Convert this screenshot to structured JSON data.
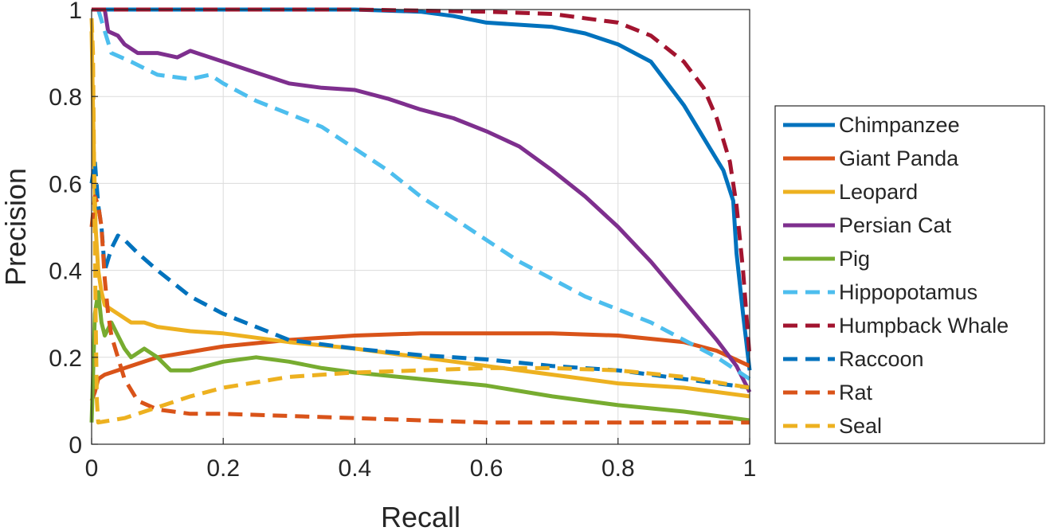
{
  "chart_data": {
    "type": "line",
    "title": "",
    "xlabel": "Recall",
    "ylabel": "Precision",
    "xlim": [
      0,
      1
    ],
    "ylim": [
      0,
      1
    ],
    "xticks": [
      0,
      0.2,
      0.4,
      0.6,
      0.8,
      1
    ],
    "xtick_labels": [
      "0",
      "0.2",
      "0.4",
      "0.6",
      "0.8",
      "1"
    ],
    "yticks": [
      0,
      0.2,
      0.4,
      0.6,
      0.8,
      1
    ],
    "ytick_labels": [
      "0",
      "0.2",
      "0.4",
      "0.6",
      "0.8",
      "1"
    ],
    "grid": true,
    "legend_position": "outside-right",
    "series": [
      {
        "name": "Chimpanzee",
        "color": "#0072BD",
        "style": "solid",
        "points": [
          [
            0,
            1
          ],
          [
            0.2,
            1
          ],
          [
            0.4,
            1
          ],
          [
            0.5,
            0.995
          ],
          [
            0.55,
            0.985
          ],
          [
            0.6,
            0.97
          ],
          [
            0.7,
            0.96
          ],
          [
            0.75,
            0.945
          ],
          [
            0.8,
            0.92
          ],
          [
            0.85,
            0.88
          ],
          [
            0.9,
            0.78
          ],
          [
            0.94,
            0.68
          ],
          [
            0.96,
            0.63
          ],
          [
            0.975,
            0.56
          ],
          [
            0.98,
            0.44
          ],
          [
            0.99,
            0.3
          ],
          [
            1,
            0.17
          ]
        ]
      },
      {
        "name": "Giant Panda",
        "color": "#D95319",
        "style": "solid",
        "points": [
          [
            0,
            0.1
          ],
          [
            0.005,
            0.12
          ],
          [
            0.01,
            0.15
          ],
          [
            0.02,
            0.16
          ],
          [
            0.05,
            0.175
          ],
          [
            0.1,
            0.2
          ],
          [
            0.2,
            0.225
          ],
          [
            0.3,
            0.24
          ],
          [
            0.4,
            0.25
          ],
          [
            0.5,
            0.255
          ],
          [
            0.6,
            0.255
          ],
          [
            0.7,
            0.255
          ],
          [
            0.8,
            0.25
          ],
          [
            0.9,
            0.235
          ],
          [
            0.95,
            0.215
          ],
          [
            1,
            0.18
          ]
        ]
      },
      {
        "name": "Leopard",
        "color": "#EDB120",
        "style": "solid",
        "points": [
          [
            0,
            0.95
          ],
          [
            0.003,
            0.7
          ],
          [
            0.006,
            0.5
          ],
          [
            0.01,
            0.4
          ],
          [
            0.015,
            0.35
          ],
          [
            0.02,
            0.32
          ],
          [
            0.04,
            0.3
          ],
          [
            0.06,
            0.28
          ],
          [
            0.08,
            0.28
          ],
          [
            0.1,
            0.27
          ],
          [
            0.15,
            0.26
          ],
          [
            0.2,
            0.255
          ],
          [
            0.3,
            0.235
          ],
          [
            0.4,
            0.22
          ],
          [
            0.5,
            0.2
          ],
          [
            0.6,
            0.18
          ],
          [
            0.7,
            0.16
          ],
          [
            0.8,
            0.14
          ],
          [
            0.9,
            0.13
          ],
          [
            1,
            0.11
          ]
        ]
      },
      {
        "name": "Persian Cat",
        "color": "#7E2F8E",
        "style": "solid",
        "points": [
          [
            0.02,
            1
          ],
          [
            0.025,
            0.95
          ],
          [
            0.04,
            0.94
          ],
          [
            0.05,
            0.92
          ],
          [
            0.07,
            0.9
          ],
          [
            0.1,
            0.9
          ],
          [
            0.13,
            0.89
          ],
          [
            0.15,
            0.905
          ],
          [
            0.2,
            0.88
          ],
          [
            0.25,
            0.855
          ],
          [
            0.3,
            0.83
          ],
          [
            0.35,
            0.82
          ],
          [
            0.4,
            0.815
          ],
          [
            0.45,
            0.795
          ],
          [
            0.5,
            0.77
          ],
          [
            0.55,
            0.75
          ],
          [
            0.6,
            0.72
          ],
          [
            0.65,
            0.685
          ],
          [
            0.7,
            0.63
          ],
          [
            0.75,
            0.57
          ],
          [
            0.8,
            0.5
          ],
          [
            0.85,
            0.42
          ],
          [
            0.9,
            0.33
          ],
          [
            0.95,
            0.24
          ],
          [
            0.98,
            0.18
          ],
          [
            1,
            0.12
          ]
        ]
      },
      {
        "name": "Pig",
        "color": "#77AC30",
        "style": "solid",
        "points": [
          [
            0,
            0.05
          ],
          [
            0.005,
            0.3
          ],
          [
            0.01,
            0.35
          ],
          [
            0.015,
            0.28
          ],
          [
            0.02,
            0.25
          ],
          [
            0.03,
            0.28
          ],
          [
            0.04,
            0.25
          ],
          [
            0.05,
            0.22
          ],
          [
            0.06,
            0.2
          ],
          [
            0.08,
            0.22
          ],
          [
            0.1,
            0.2
          ],
          [
            0.12,
            0.17
          ],
          [
            0.15,
            0.17
          ],
          [
            0.2,
            0.19
          ],
          [
            0.25,
            0.2
          ],
          [
            0.3,
            0.19
          ],
          [
            0.35,
            0.175
          ],
          [
            0.4,
            0.165
          ],
          [
            0.5,
            0.15
          ],
          [
            0.6,
            0.135
          ],
          [
            0.7,
            0.11
          ],
          [
            0.8,
            0.09
          ],
          [
            0.9,
            0.075
          ],
          [
            1,
            0.055
          ]
        ]
      },
      {
        "name": "Hippopotamus",
        "color": "#4DBEEE",
        "style": "dashed",
        "points": [
          [
            0.01,
            1
          ],
          [
            0.03,
            0.9
          ],
          [
            0.06,
            0.88
          ],
          [
            0.1,
            0.85
          ],
          [
            0.15,
            0.84
          ],
          [
            0.18,
            0.85
          ],
          [
            0.2,
            0.83
          ],
          [
            0.25,
            0.79
          ],
          [
            0.3,
            0.76
          ],
          [
            0.35,
            0.73
          ],
          [
            0.4,
            0.68
          ],
          [
            0.45,
            0.63
          ],
          [
            0.5,
            0.57
          ],
          [
            0.55,
            0.52
          ],
          [
            0.6,
            0.47
          ],
          [
            0.65,
            0.42
          ],
          [
            0.7,
            0.38
          ],
          [
            0.75,
            0.34
          ],
          [
            0.8,
            0.31
          ],
          [
            0.85,
            0.28
          ],
          [
            0.9,
            0.24
          ],
          [
            0.95,
            0.2
          ],
          [
            1,
            0.15
          ]
        ]
      },
      {
        "name": "Humpback Whale",
        "color": "#A2142F",
        "style": "dashed",
        "points": [
          [
            0,
            1
          ],
          [
            0.2,
            1
          ],
          [
            0.4,
            1
          ],
          [
            0.6,
            0.995
          ],
          [
            0.7,
            0.99
          ],
          [
            0.8,
            0.97
          ],
          [
            0.85,
            0.94
          ],
          [
            0.9,
            0.88
          ],
          [
            0.93,
            0.82
          ],
          [
            0.95,
            0.75
          ],
          [
            0.97,
            0.65
          ],
          [
            0.98,
            0.55
          ],
          [
            0.99,
            0.4
          ],
          [
            1,
            0.2
          ]
        ]
      },
      {
        "name": "Raccoon",
        "color": "#0072BD",
        "style": "dashed",
        "points": [
          [
            0,
            0.6
          ],
          [
            0.005,
            0.65
          ],
          [
            0.01,
            0.55
          ],
          [
            0.015,
            0.5
          ],
          [
            0.02,
            0.4
          ],
          [
            0.03,
            0.45
          ],
          [
            0.04,
            0.48
          ],
          [
            0.05,
            0.47
          ],
          [
            0.07,
            0.44
          ],
          [
            0.1,
            0.4
          ],
          [
            0.15,
            0.34
          ],
          [
            0.2,
            0.3
          ],
          [
            0.25,
            0.27
          ],
          [
            0.3,
            0.24
          ],
          [
            0.4,
            0.22
          ],
          [
            0.5,
            0.205
          ],
          [
            0.6,
            0.195
          ],
          [
            0.7,
            0.18
          ],
          [
            0.8,
            0.17
          ],
          [
            0.9,
            0.15
          ],
          [
            1,
            0.13
          ]
        ]
      },
      {
        "name": "Rat",
        "color": "#D95319",
        "style": "dashed",
        "points": [
          [
            0,
            0.5
          ],
          [
            0.005,
            0.57
          ],
          [
            0.01,
            0.55
          ],
          [
            0.015,
            0.5
          ],
          [
            0.02,
            0.38
          ],
          [
            0.025,
            0.3
          ],
          [
            0.03,
            0.25
          ],
          [
            0.04,
            0.2
          ],
          [
            0.05,
            0.15
          ],
          [
            0.07,
            0.1
          ],
          [
            0.1,
            0.08
          ],
          [
            0.15,
            0.07
          ],
          [
            0.2,
            0.07
          ],
          [
            0.3,
            0.065
          ],
          [
            0.4,
            0.06
          ],
          [
            0.5,
            0.055
          ],
          [
            0.6,
            0.05
          ],
          [
            0.7,
            0.05
          ],
          [
            0.8,
            0.05
          ],
          [
            0.9,
            0.05
          ],
          [
            1,
            0.05
          ]
        ]
      },
      {
        "name": "Seal",
        "color": "#EDB120",
        "style": "dashed",
        "points": [
          [
            0,
            0.98
          ],
          [
            0.002,
            0.9
          ],
          [
            0.004,
            0.6
          ],
          [
            0.006,
            0.3
          ],
          [
            0.008,
            0.1
          ],
          [
            0.01,
            0.05
          ],
          [
            0.05,
            0.06
          ],
          [
            0.1,
            0.085
          ],
          [
            0.15,
            0.11
          ],
          [
            0.2,
            0.13
          ],
          [
            0.3,
            0.155
          ],
          [
            0.4,
            0.165
          ],
          [
            0.5,
            0.17
          ],
          [
            0.6,
            0.175
          ],
          [
            0.7,
            0.175
          ],
          [
            0.8,
            0.17
          ],
          [
            0.9,
            0.155
          ],
          [
            1,
            0.13
          ]
        ]
      }
    ]
  }
}
